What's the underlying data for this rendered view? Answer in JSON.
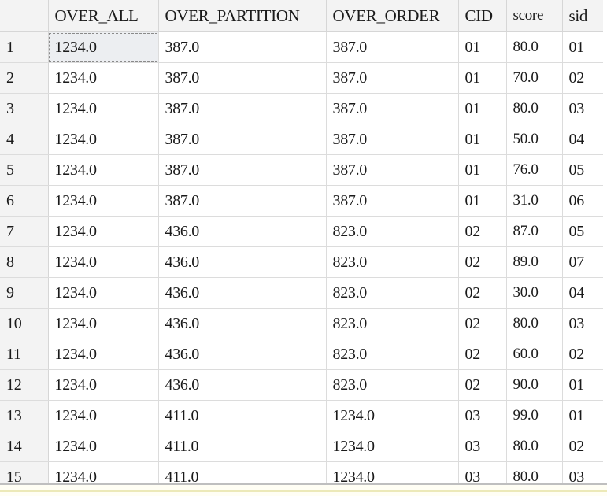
{
  "grid": {
    "columns": [
      "",
      "OVER_ALL",
      "OVER_PARTITION",
      "OVER_ORDER",
      "CID",
      "score",
      "sid"
    ],
    "selected_cell": {
      "row": 1,
      "column": "OVER_ALL"
    },
    "rows": [
      {
        "n": "1",
        "over_all": "1234.0",
        "over_partition": "387.0",
        "over_order": "387.0",
        "cid": "01",
        "score": "80.0",
        "sid": "01"
      },
      {
        "n": "2",
        "over_all": "1234.0",
        "over_partition": "387.0",
        "over_order": "387.0",
        "cid": "01",
        "score": "70.0",
        "sid": "02"
      },
      {
        "n": "3",
        "over_all": "1234.0",
        "over_partition": "387.0",
        "over_order": "387.0",
        "cid": "01",
        "score": "80.0",
        "sid": "03"
      },
      {
        "n": "4",
        "over_all": "1234.0",
        "over_partition": "387.0",
        "over_order": "387.0",
        "cid": "01",
        "score": "50.0",
        "sid": "04"
      },
      {
        "n": "5",
        "over_all": "1234.0",
        "over_partition": "387.0",
        "over_order": "387.0",
        "cid": "01",
        "score": "76.0",
        "sid": "05"
      },
      {
        "n": "6",
        "over_all": "1234.0",
        "over_partition": "387.0",
        "over_order": "387.0",
        "cid": "01",
        "score": "31.0",
        "sid": "06"
      },
      {
        "n": "7",
        "over_all": "1234.0",
        "over_partition": "436.0",
        "over_order": "823.0",
        "cid": "02",
        "score": "87.0",
        "sid": "05"
      },
      {
        "n": "8",
        "over_all": "1234.0",
        "over_partition": "436.0",
        "over_order": "823.0",
        "cid": "02",
        "score": "89.0",
        "sid": "07"
      },
      {
        "n": "9",
        "over_all": "1234.0",
        "over_partition": "436.0",
        "over_order": "823.0",
        "cid": "02",
        "score": "30.0",
        "sid": "04"
      },
      {
        "n": "10",
        "over_all": "1234.0",
        "over_partition": "436.0",
        "over_order": "823.0",
        "cid": "02",
        "score": "80.0",
        "sid": "03"
      },
      {
        "n": "11",
        "over_all": "1234.0",
        "over_partition": "436.0",
        "over_order": "823.0",
        "cid": "02",
        "score": "60.0",
        "sid": "02"
      },
      {
        "n": "12",
        "over_all": "1234.0",
        "over_partition": "436.0",
        "over_order": "823.0",
        "cid": "02",
        "score": "90.0",
        "sid": "01"
      },
      {
        "n": "13",
        "over_all": "1234.0",
        "over_partition": "411.0",
        "over_order": "1234.0",
        "cid": "03",
        "score": "99.0",
        "sid": "01"
      },
      {
        "n": "14",
        "over_all": "1234.0",
        "over_partition": "411.0",
        "over_order": "1234.0",
        "cid": "03",
        "score": "80.0",
        "sid": "02"
      },
      {
        "n": "15",
        "over_all": "1234.0",
        "over_partition": "411.0",
        "over_order": "1234.0",
        "cid": "03",
        "score": "80.0",
        "sid": "03"
      }
    ]
  },
  "colors": {
    "header_bg": "#f3f3f3",
    "gridline": "#dcdcdc",
    "selected_cell_bg": "#eceef1",
    "status_strip": "#ece9b8"
  }
}
